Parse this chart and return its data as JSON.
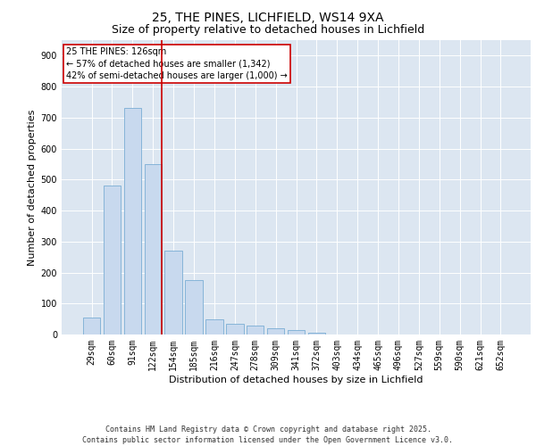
{
  "title_line1": "25, THE PINES, LICHFIELD, WS14 9XA",
  "title_line2": "Size of property relative to detached houses in Lichfield",
  "xlabel": "Distribution of detached houses by size in Lichfield",
  "ylabel": "Number of detached properties",
  "categories": [
    "29sqm",
    "60sqm",
    "91sqm",
    "122sqm",
    "154sqm",
    "185sqm",
    "216sqm",
    "247sqm",
    "278sqm",
    "309sqm",
    "341sqm",
    "372sqm",
    "403sqm",
    "434sqm",
    "465sqm",
    "496sqm",
    "527sqm",
    "559sqm",
    "590sqm",
    "621sqm",
    "652sqm"
  ],
  "values": [
    55,
    480,
    730,
    550,
    270,
    175,
    50,
    35,
    30,
    20,
    15,
    5,
    0,
    0,
    0,
    0,
    0,
    0,
    0,
    0,
    0
  ],
  "bar_color": "#c8d9ee",
  "bar_edge_color": "#7aadd4",
  "red_line_x": 3.42,
  "annotation_text": "25 THE PINES: 126sqm\n← 57% of detached houses are smaller (1,342)\n42% of semi-detached houses are larger (1,000) →",
  "annotation_box_color": "#ffffff",
  "annotation_box_edge": "#cc0000",
  "ylim": [
    0,
    950
  ],
  "yticks": [
    0,
    100,
    200,
    300,
    400,
    500,
    600,
    700,
    800,
    900
  ],
  "background_color": "#dce6f1",
  "footer_line1": "Contains HM Land Registry data © Crown copyright and database right 2025.",
  "footer_line2": "Contains public sector information licensed under the Open Government Licence v3.0.",
  "title_fontsize": 10,
  "subtitle_fontsize": 9,
  "axis_label_fontsize": 8,
  "tick_fontsize": 7,
  "annotation_fontsize": 7,
  "footer_fontsize": 6
}
